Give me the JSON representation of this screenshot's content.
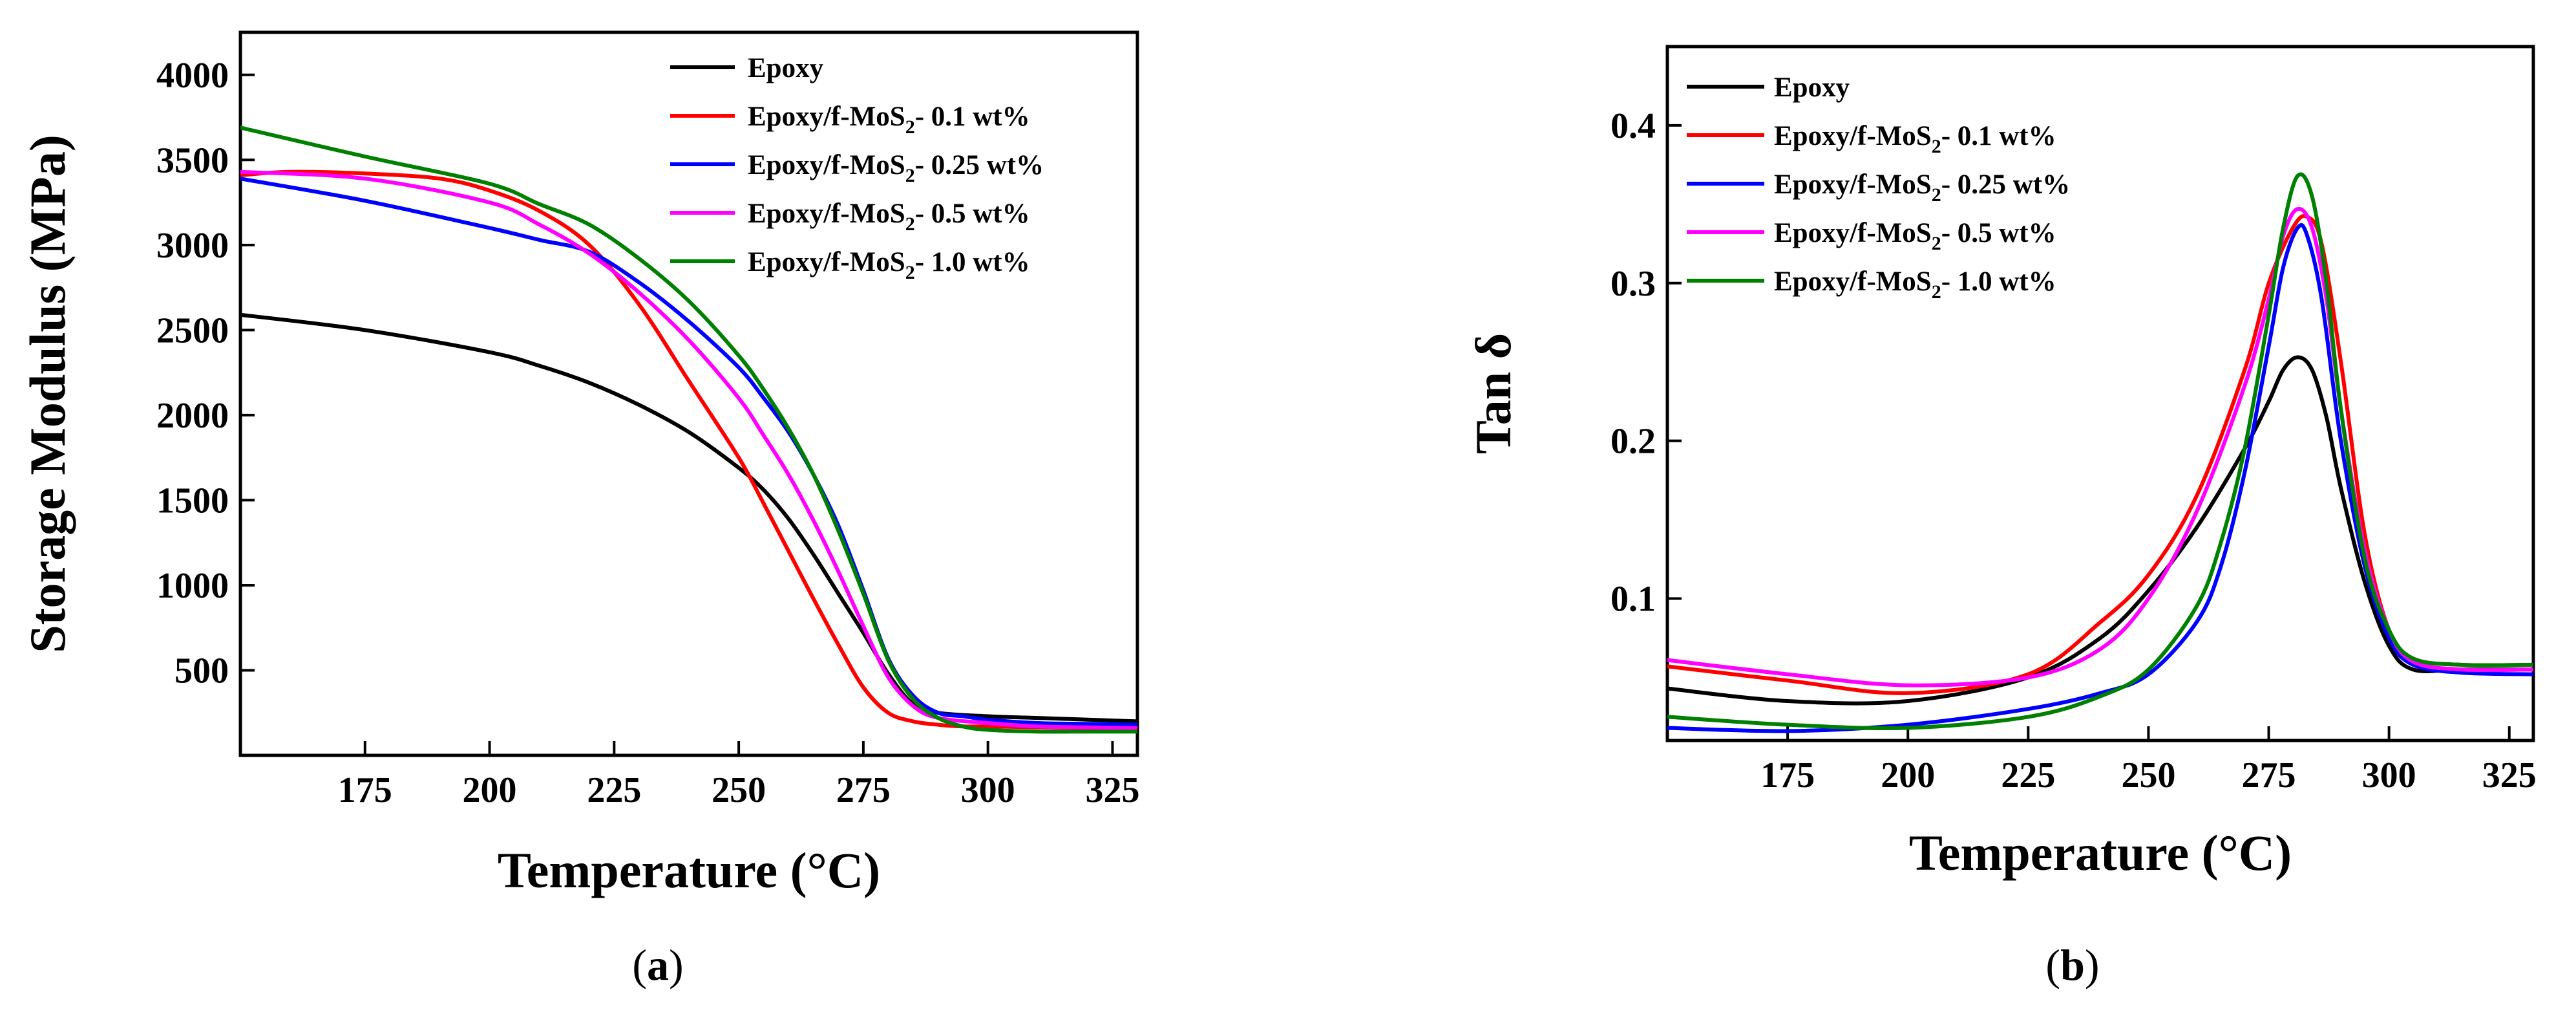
{
  "figure": {
    "panel_labels": [
      {
        "open": "(",
        "letter": "a",
        "close": ")"
      },
      {
        "open": "(",
        "letter": "b",
        "close": ")"
      }
    ]
  },
  "chart_data": [
    {
      "type": "line",
      "xlabel": "Temperature (°C)",
      "ylabel": "Storage Modulus (MPa)",
      "xlim": [
        150,
        330
      ],
      "ylim": [
        0,
        4250
      ],
      "xticks": [
        175,
        200,
        225,
        250,
        275,
        300,
        325
      ],
      "yticks": [
        500,
        1000,
        1500,
        2000,
        2500,
        3000,
        3500,
        4000
      ],
      "xtick_labels": [
        "175",
        "200",
        "225",
        "250",
        "275",
        "300",
        "325"
      ],
      "ytick_labels": [
        "500",
        "1000",
        "1500",
        "2000",
        "2500",
        "3000",
        "3500",
        "4000"
      ],
      "legend_position": "top-right",
      "series": [
        {
          "name": "Epoxy",
          "prefix": "Epoxy",
          "sub": "",
          "suffix": "",
          "color": "#000000",
          "x": [
            150,
            175,
            200,
            210,
            220,
            230,
            240,
            250,
            255,
            260,
            265,
            270,
            275,
            280,
            285,
            290,
            300,
            310,
            320,
            330
          ],
          "y": [
            2590,
            2500,
            2370,
            2290,
            2190,
            2060,
            1900,
            1690,
            1560,
            1390,
            1180,
            950,
            720,
            480,
            300,
            250,
            230,
            220,
            210,
            200
          ]
        },
        {
          "name": "Epoxy/f-MoS2- 0.1 wt%",
          "prefix": "Epoxy/f-MoS",
          "sub": "2",
          "suffix": "- 0.1 wt%",
          "color": "#ff0000",
          "x": [
            150,
            160,
            175,
            190,
            200,
            210,
            220,
            230,
            240,
            250,
            255,
            260,
            265,
            270,
            275,
            280,
            285,
            290,
            295,
            300,
            310,
            320,
            330
          ],
          "y": [
            3410,
            3430,
            3420,
            3390,
            3320,
            3200,
            3000,
            2650,
            2200,
            1750,
            1480,
            1200,
            920,
            650,
            400,
            250,
            200,
            180,
            170,
            170,
            165,
            160,
            160
          ]
        },
        {
          "name": "Epoxy/f-MoS2- 0.25 wt%",
          "prefix": "Epoxy/f-MoS",
          "sub": "2",
          "suffix": "- 0.25 wt%",
          "color": "#0000ff",
          "x": [
            150,
            175,
            200,
            210,
            220,
            230,
            240,
            250,
            255,
            260,
            265,
            270,
            275,
            280,
            285,
            290,
            295,
            300,
            310,
            320,
            330
          ],
          "y": [
            3390,
            3260,
            3100,
            3030,
            2960,
            2780,
            2550,
            2280,
            2100,
            1900,
            1650,
            1350,
            970,
            570,
            350,
            250,
            230,
            210,
            190,
            185,
            180
          ]
        },
        {
          "name": "Epoxy/f-MoS2- 0.5 wt%",
          "prefix": "Epoxy/f-MoS",
          "sub": "2",
          "suffix": "- 0.5 wt%",
          "color": "#ff00ff",
          "x": [
            150,
            175,
            200,
            210,
            220,
            230,
            240,
            250,
            255,
            260,
            265,
            270,
            275,
            280,
            285,
            290,
            300,
            310,
            320,
            330
          ],
          "y": [
            3430,
            3390,
            3250,
            3120,
            2950,
            2720,
            2440,
            2100,
            1880,
            1650,
            1380,
            1080,
            760,
            460,
            290,
            220,
            190,
            170,
            165,
            160
          ]
        },
        {
          "name": "Epoxy/f-MoS2- 1.0 wt%",
          "prefix": "Epoxy/f-MoS",
          "sub": "2",
          "suffix": "- 1.0 wt%",
          "color": "#008000",
          "x": [
            150,
            175,
            200,
            210,
            220,
            230,
            240,
            250,
            255,
            260,
            265,
            270,
            275,
            280,
            285,
            290,
            295,
            300,
            310,
            320,
            330
          ],
          "y": [
            3690,
            3520,
            3360,
            3240,
            3120,
            2920,
            2670,
            2350,
            2150,
            1920,
            1650,
            1320,
            950,
            560,
            330,
            220,
            170,
            150,
            140,
            140,
            140
          ]
        }
      ]
    },
    {
      "type": "line",
      "xlabel": "Temperature (°C)",
      "ylabel": "Tan δ",
      "xlim": [
        150,
        330
      ],
      "ylim": [
        0.01,
        0.45
      ],
      "xticks": [
        175,
        200,
        225,
        250,
        275,
        300,
        325
      ],
      "yticks": [
        0.1,
        0.2,
        0.3,
        0.4
      ],
      "xtick_labels": [
        "175",
        "200",
        "225",
        "250",
        "275",
        "300",
        "325"
      ],
      "ytick_labels": [
        "0.1",
        "0.2",
        "0.3",
        "0.4"
      ],
      "legend_position": "top-left",
      "series": [
        {
          "name": "Epoxy",
          "prefix": "Epoxy",
          "sub": "",
          "suffix": "",
          "color": "#000000",
          "x": [
            150,
            175,
            200,
            225,
            240,
            250,
            260,
            270,
            275,
            278,
            281,
            284,
            287,
            290,
            295,
            300,
            305,
            315,
            330
          ],
          "y": [
            0.043,
            0.035,
            0.035,
            0.05,
            0.075,
            0.105,
            0.145,
            0.195,
            0.225,
            0.245,
            0.253,
            0.245,
            0.215,
            0.17,
            0.11,
            0.07,
            0.055,
            0.055,
            0.055
          ]
        },
        {
          "name": "Epoxy/f-MoS2- 0.1 wt%",
          "prefix": "Epoxy/f-MoS",
          "sub": "2",
          "suffix": "- 0.1 wt%",
          "color": "#ff0000",
          "x": [
            150,
            175,
            200,
            225,
            240,
            250,
            260,
            270,
            275,
            280,
            283,
            286,
            290,
            295,
            300,
            305,
            315,
            330
          ],
          "y": [
            0.057,
            0.048,
            0.04,
            0.052,
            0.085,
            0.115,
            0.165,
            0.245,
            0.3,
            0.335,
            0.342,
            0.325,
            0.25,
            0.14,
            0.08,
            0.062,
            0.058,
            0.058
          ]
        },
        {
          "name": "Epoxy/f-MoS2- 0.25 wt%",
          "prefix": "Epoxy/f-MoS",
          "sub": "2",
          "suffix": "- 0.25 wt%",
          "color": "#0000ff",
          "x": [
            150,
            175,
            200,
            225,
            240,
            250,
            260,
            265,
            270,
            275,
            278,
            281,
            283,
            286,
            290,
            295,
            300,
            305,
            315,
            330
          ],
          "y": [
            0.018,
            0.016,
            0.02,
            0.03,
            0.04,
            0.052,
            0.085,
            0.12,
            0.18,
            0.26,
            0.31,
            0.335,
            0.33,
            0.29,
            0.2,
            0.12,
            0.075,
            0.058,
            0.053,
            0.052
          ]
        },
        {
          "name": "Epoxy/f-MoS2- 0.5 wt%",
          "prefix": "Epoxy/f-MoS",
          "sub": "2",
          "suffix": "- 0.5 wt%",
          "color": "#ff00ff",
          "x": [
            150,
            175,
            200,
            225,
            240,
            250,
            260,
            270,
            275,
            278,
            281,
            284,
            287,
            290,
            295,
            300,
            305,
            315,
            330
          ],
          "y": [
            0.061,
            0.052,
            0.045,
            0.05,
            0.068,
            0.1,
            0.155,
            0.235,
            0.29,
            0.33,
            0.347,
            0.335,
            0.29,
            0.22,
            0.13,
            0.08,
            0.06,
            0.055,
            0.055
          ]
        },
        {
          "name": "Epoxy/f-MoS2- 1.0 wt%",
          "prefix": "Epoxy/f-MoS",
          "sub": "2",
          "suffix": "- 1.0 wt%",
          "color": "#008000",
          "x": [
            150,
            175,
            200,
            225,
            240,
            250,
            260,
            265,
            270,
            275,
            278,
            281,
            284,
            287,
            290,
            295,
            300,
            305,
            315,
            330
          ],
          "y": [
            0.025,
            0.02,
            0.018,
            0.025,
            0.038,
            0.055,
            0.095,
            0.135,
            0.195,
            0.28,
            0.335,
            0.368,
            0.355,
            0.3,
            0.22,
            0.125,
            0.08,
            0.062,
            0.058,
            0.058
          ]
        }
      ]
    }
  ]
}
